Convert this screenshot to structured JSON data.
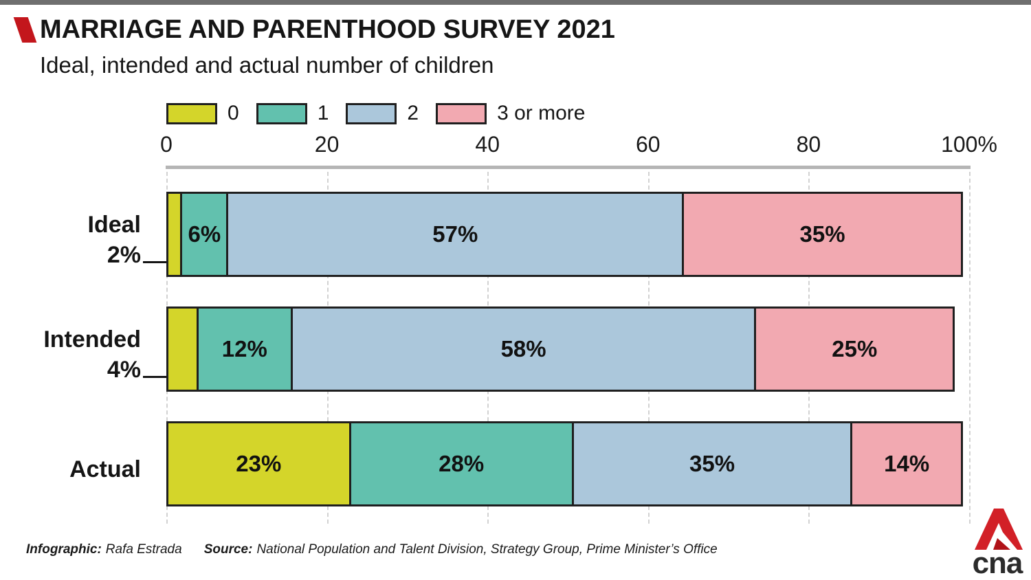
{
  "header": {
    "title": "MARRIAGE AND PARENTHOOD SURVEY 2021",
    "subtitle": "Ideal, intended and actual number of children"
  },
  "footer": {
    "infographic_label": "Infographic:",
    "infographic_value": "Rafa Estrada",
    "source_label": "Source:",
    "source_value": "National Population and Talent Division, Strategy Group, Prime Minister’s Office"
  },
  "logo": {
    "text": "cna"
  },
  "colors": {
    "accent_red": "#c3161c",
    "logo_red": "#d22027",
    "logo_red_dark": "#b01218",
    "logo_text": "#2b2b2b",
    "top_bar": "#6f6f6f",
    "segment_border": "#1f1f1f"
  },
  "chart_data": {
    "type": "bar",
    "stacked": true,
    "orientation": "horizontal",
    "title": "MARRIAGE AND PARENTHOOD SURVEY 2021",
    "subtitle": "Ideal, intended and actual number of children",
    "categories": [
      "Ideal",
      "Intended",
      "Actual"
    ],
    "series": [
      {
        "name": "0",
        "color": "#d4d52a",
        "values": [
          2,
          4,
          23
        ]
      },
      {
        "name": "1",
        "color": "#62c1ae",
        "values": [
          6,
          12,
          28
        ]
      },
      {
        "name": "2",
        "color": "#abc7db",
        "values": [
          57,
          58,
          35
        ]
      },
      {
        "name": "3 or more",
        "color": "#f2a9b1",
        "values": [
          35,
          25,
          14
        ]
      }
    ],
    "xlim": [
      0,
      100
    ],
    "x_ticks": [
      0,
      20,
      40,
      60,
      80
    ],
    "x_tick_last_label": "100%",
    "value_suffix": "%",
    "callouts": {
      "Ideal": "2%",
      "Intended": "4%"
    },
    "legend_position": "top",
    "grid": "dashed-vertical"
  }
}
